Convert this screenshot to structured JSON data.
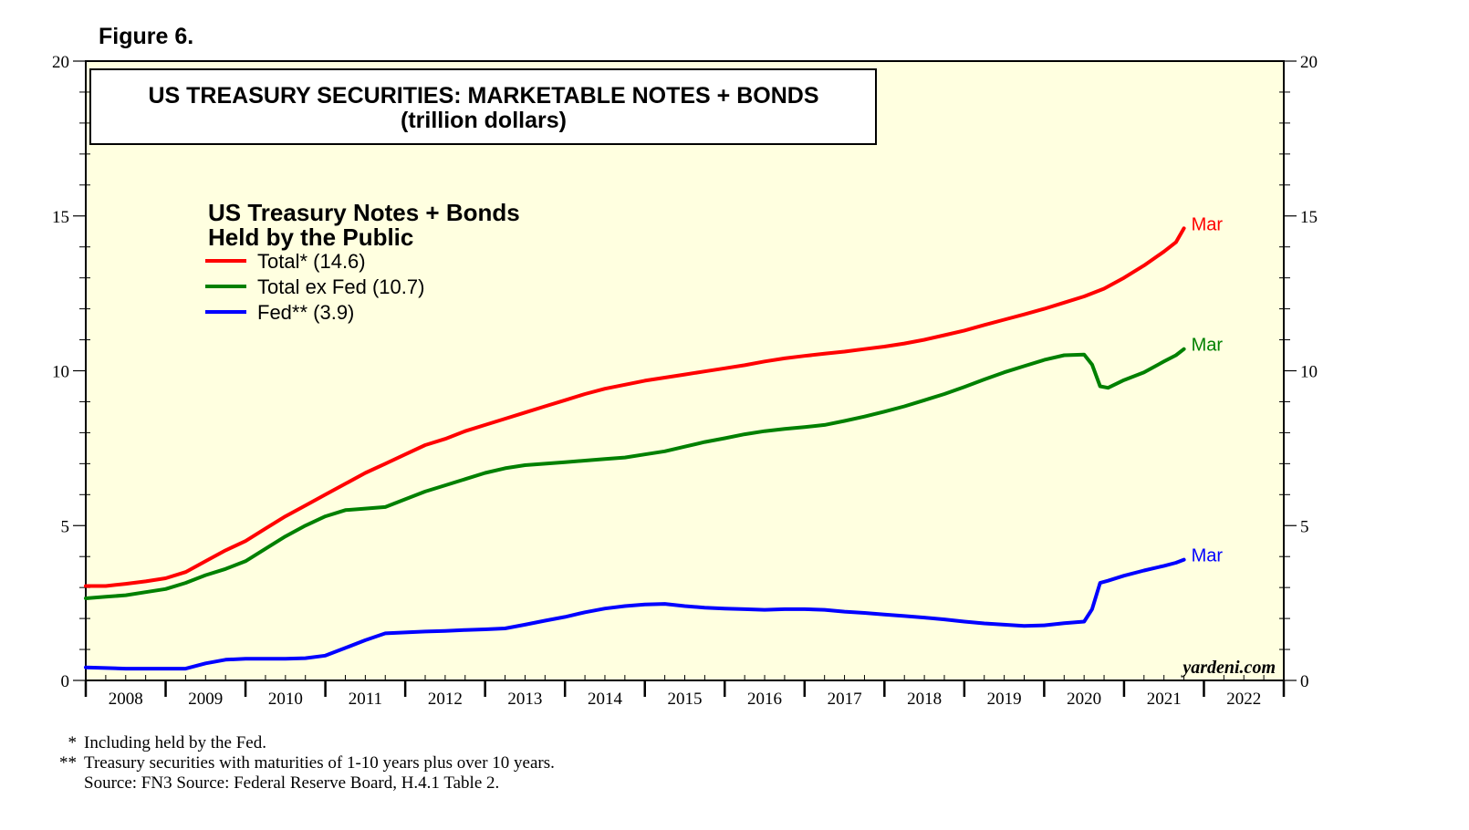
{
  "figure_label": "Figure 6.",
  "footnotes": [
    {
      "mark": "*",
      "text": "Including held by the Fed."
    },
    {
      "mark": "**",
      "text": "Treasury securities with maturities of 1-10 years plus over 10 years."
    },
    {
      "mark": "",
      "text": "Source: FN3 Source: Federal Reserve Board, H.4.1 Table 2."
    }
  ],
  "chart_data": {
    "type": "line",
    "title": "US TREASURY SECURITIES: MARKETABLE NOTES + BONDS",
    "subtitle": "(trillion dollars)",
    "legend_title": [
      "US Treasury Notes + Bonds",
      "Held by the Public"
    ],
    "watermark": "yardeni.com",
    "ylim": [
      0,
      20
    ],
    "yticks": [
      0,
      5,
      10,
      15,
      20
    ],
    "xlim": [
      2007.5,
      2022.5
    ],
    "xticks": [
      "2008",
      "2009",
      "2010",
      "2011",
      "2012",
      "2013",
      "2014",
      "2015",
      "2016",
      "2017",
      "2018",
      "2019",
      "2020",
      "2021",
      "2022"
    ],
    "background": "#ffffe0",
    "series": [
      {
        "name": "Total* (14.6)",
        "color": "#ff0000",
        "end_label": "Mar",
        "points": [
          [
            2007.5,
            3.05
          ],
          [
            2007.75,
            3.05
          ],
          [
            2008.0,
            3.12
          ],
          [
            2008.25,
            3.2
          ],
          [
            2008.5,
            3.3
          ],
          [
            2008.75,
            3.5
          ],
          [
            2009.0,
            3.85
          ],
          [
            2009.25,
            4.2
          ],
          [
            2009.5,
            4.5
          ],
          [
            2009.75,
            4.9
          ],
          [
            2010.0,
            5.3
          ],
          [
            2010.25,
            5.65
          ],
          [
            2010.5,
            6.0
          ],
          [
            2010.75,
            6.35
          ],
          [
            2011.0,
            6.7
          ],
          [
            2011.25,
            7.0
          ],
          [
            2011.5,
            7.3
          ],
          [
            2011.75,
            7.6
          ],
          [
            2012.0,
            7.8
          ],
          [
            2012.25,
            8.05
          ],
          [
            2012.5,
            8.25
          ],
          [
            2012.75,
            8.45
          ],
          [
            2013.0,
            8.65
          ],
          [
            2013.25,
            8.85
          ],
          [
            2013.5,
            9.05
          ],
          [
            2013.75,
            9.25
          ],
          [
            2014.0,
            9.42
          ],
          [
            2014.25,
            9.55
          ],
          [
            2014.5,
            9.68
          ],
          [
            2014.75,
            9.78
          ],
          [
            2015.0,
            9.88
          ],
          [
            2015.25,
            9.98
          ],
          [
            2015.5,
            10.08
          ],
          [
            2015.75,
            10.18
          ],
          [
            2016.0,
            10.3
          ],
          [
            2016.25,
            10.4
          ],
          [
            2016.5,
            10.48
          ],
          [
            2016.75,
            10.55
          ],
          [
            2017.0,
            10.62
          ],
          [
            2017.25,
            10.7
          ],
          [
            2017.5,
            10.78
          ],
          [
            2017.75,
            10.88
          ],
          [
            2018.0,
            11.0
          ],
          [
            2018.25,
            11.15
          ],
          [
            2018.5,
            11.3
          ],
          [
            2018.75,
            11.48
          ],
          [
            2019.0,
            11.65
          ],
          [
            2019.25,
            11.82
          ],
          [
            2019.5,
            12.0
          ],
          [
            2019.75,
            12.2
          ],
          [
            2020.0,
            12.4
          ],
          [
            2020.25,
            12.65
          ],
          [
            2020.5,
            13.0
          ],
          [
            2020.75,
            13.4
          ],
          [
            2021.0,
            13.85
          ],
          [
            2021.15,
            14.15
          ],
          [
            2021.25,
            14.6
          ]
        ]
      },
      {
        "name": "Total ex Fed (10.7)",
        "color": "#008000",
        "end_label": "Mar",
        "points": [
          [
            2007.5,
            2.65
          ],
          [
            2007.75,
            2.7
          ],
          [
            2008.0,
            2.75
          ],
          [
            2008.25,
            2.85
          ],
          [
            2008.5,
            2.95
          ],
          [
            2008.75,
            3.15
          ],
          [
            2009.0,
            3.4
          ],
          [
            2009.25,
            3.6
          ],
          [
            2009.5,
            3.85
          ],
          [
            2009.75,
            4.25
          ],
          [
            2010.0,
            4.65
          ],
          [
            2010.25,
            5.0
          ],
          [
            2010.5,
            5.3
          ],
          [
            2010.75,
            5.5
          ],
          [
            2011.0,
            5.55
          ],
          [
            2011.25,
            5.6
          ],
          [
            2011.5,
            5.85
          ],
          [
            2011.75,
            6.1
          ],
          [
            2012.0,
            6.3
          ],
          [
            2012.25,
            6.5
          ],
          [
            2012.5,
            6.7
          ],
          [
            2012.75,
            6.85
          ],
          [
            2013.0,
            6.95
          ],
          [
            2013.25,
            7.0
          ],
          [
            2013.5,
            7.05
          ],
          [
            2013.75,
            7.1
          ],
          [
            2014.0,
            7.15
          ],
          [
            2014.25,
            7.2
          ],
          [
            2014.5,
            7.3
          ],
          [
            2014.75,
            7.4
          ],
          [
            2015.0,
            7.55
          ],
          [
            2015.25,
            7.7
          ],
          [
            2015.5,
            7.82
          ],
          [
            2015.75,
            7.95
          ],
          [
            2016.0,
            8.05
          ],
          [
            2016.25,
            8.12
          ],
          [
            2016.5,
            8.18
          ],
          [
            2016.75,
            8.25
          ],
          [
            2017.0,
            8.38
          ],
          [
            2017.25,
            8.52
          ],
          [
            2017.5,
            8.68
          ],
          [
            2017.75,
            8.85
          ],
          [
            2018.0,
            9.05
          ],
          [
            2018.25,
            9.25
          ],
          [
            2018.5,
            9.48
          ],
          [
            2018.75,
            9.72
          ],
          [
            2019.0,
            9.95
          ],
          [
            2019.25,
            10.15
          ],
          [
            2019.5,
            10.35
          ],
          [
            2019.75,
            10.5
          ],
          [
            2020.0,
            10.52
          ],
          [
            2020.1,
            10.2
          ],
          [
            2020.2,
            9.5
          ],
          [
            2020.3,
            9.45
          ],
          [
            2020.5,
            9.7
          ],
          [
            2020.75,
            9.95
          ],
          [
            2021.0,
            10.3
          ],
          [
            2021.15,
            10.5
          ],
          [
            2021.25,
            10.7
          ]
        ]
      },
      {
        "name": "Fed** (3.9)",
        "color": "#0000ff",
        "end_label": "Mar",
        "points": [
          [
            2007.5,
            0.42
          ],
          [
            2007.75,
            0.4
          ],
          [
            2008.0,
            0.38
          ],
          [
            2008.25,
            0.38
          ],
          [
            2008.5,
            0.38
          ],
          [
            2008.75,
            0.38
          ],
          [
            2009.0,
            0.55
          ],
          [
            2009.25,
            0.67
          ],
          [
            2009.5,
            0.7
          ],
          [
            2009.75,
            0.7
          ],
          [
            2010.0,
            0.7
          ],
          [
            2010.25,
            0.72
          ],
          [
            2010.5,
            0.8
          ],
          [
            2010.75,
            1.05
          ],
          [
            2011.0,
            1.3
          ],
          [
            2011.25,
            1.52
          ],
          [
            2011.5,
            1.55
          ],
          [
            2011.75,
            1.58
          ],
          [
            2012.0,
            1.6
          ],
          [
            2012.25,
            1.63
          ],
          [
            2012.5,
            1.65
          ],
          [
            2012.75,
            1.68
          ],
          [
            2013.0,
            1.8
          ],
          [
            2013.25,
            1.93
          ],
          [
            2013.5,
            2.05
          ],
          [
            2013.75,
            2.2
          ],
          [
            2014.0,
            2.32
          ],
          [
            2014.25,
            2.4
          ],
          [
            2014.5,
            2.45
          ],
          [
            2014.75,
            2.47
          ],
          [
            2015.0,
            2.4
          ],
          [
            2015.25,
            2.35
          ],
          [
            2015.5,
            2.32
          ],
          [
            2015.75,
            2.3
          ],
          [
            2016.0,
            2.28
          ],
          [
            2016.25,
            2.3
          ],
          [
            2016.5,
            2.3
          ],
          [
            2016.75,
            2.28
          ],
          [
            2017.0,
            2.22
          ],
          [
            2017.25,
            2.18
          ],
          [
            2017.5,
            2.13
          ],
          [
            2017.75,
            2.08
          ],
          [
            2018.0,
            2.03
          ],
          [
            2018.25,
            1.97
          ],
          [
            2018.5,
            1.9
          ],
          [
            2018.75,
            1.84
          ],
          [
            2019.0,
            1.8
          ],
          [
            2019.25,
            1.76
          ],
          [
            2019.5,
            1.78
          ],
          [
            2019.75,
            1.85
          ],
          [
            2020.0,
            1.9
          ],
          [
            2020.1,
            2.3
          ],
          [
            2020.2,
            3.15
          ],
          [
            2020.3,
            3.22
          ],
          [
            2020.5,
            3.38
          ],
          [
            2020.75,
            3.55
          ],
          [
            2021.0,
            3.7
          ],
          [
            2021.15,
            3.8
          ],
          [
            2021.25,
            3.9
          ]
        ]
      }
    ]
  }
}
